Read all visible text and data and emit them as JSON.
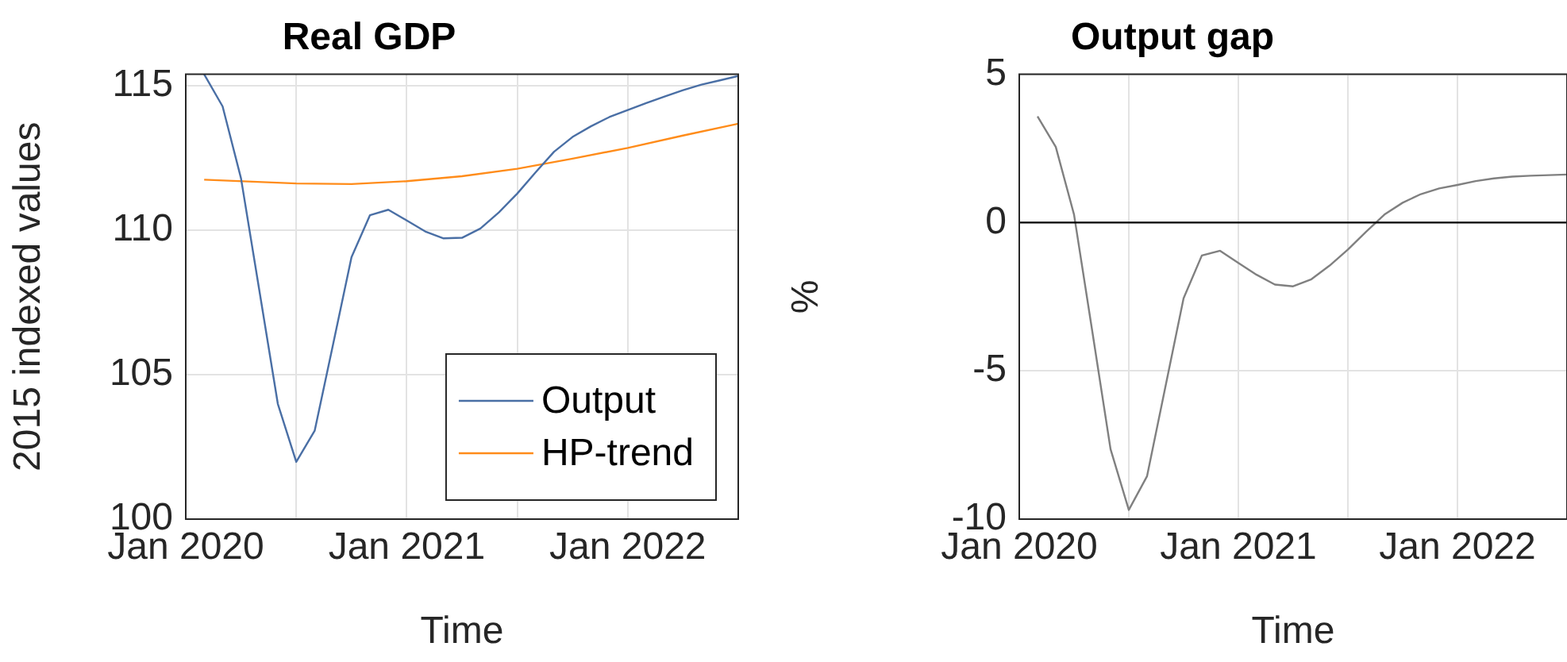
{
  "chart_data": [
    {
      "type": "line",
      "title": "Real GDP",
      "xlabel": "Time",
      "ylabel": "2015 indexed values",
      "x": [
        "2020-02",
        "2020-03",
        "2020-04",
        "2020-05",
        "2020-06",
        "2020-07",
        "2020-08",
        "2020-09",
        "2020-10",
        "2020-11",
        "2020-12",
        "2021-01",
        "2021-02",
        "2021-03",
        "2021-04",
        "2021-05",
        "2021-06",
        "2021-07",
        "2021-08",
        "2021-09",
        "2021-10",
        "2021-11",
        "2021-12",
        "2022-01",
        "2022-02",
        "2022-03",
        "2022-04",
        "2022-05",
        "2022-06",
        "2022-07"
      ],
      "series": [
        {
          "name": "Output",
          "color": "#4a6fa5",
          "values": [
            115.4,
            114.29,
            111.8,
            107.9,
            103.99,
            101.98,
            103.06,
            106.05,
            109.07,
            110.52,
            110.71,
            110.34,
            109.96,
            109.72,
            109.74,
            110.06,
            110.62,
            111.27,
            112.01,
            112.72,
            113.23,
            113.6,
            113.92,
            114.16,
            114.4,
            114.63,
            114.85,
            115.04,
            115.19,
            115.34
          ]
        },
        {
          "name": "HP-trend",
          "color": "#ff8c1a",
          "x": [
            "2020-02",
            "2020-07",
            "2020-10",
            "2021-01",
            "2021-04",
            "2021-07",
            "2021-10",
            "2022-01",
            "2022-04",
            "2022-07"
          ],
          "values": [
            111.75,
            111.62,
            111.6,
            111.7,
            111.87,
            112.13,
            112.48,
            112.85,
            113.28,
            113.69
          ]
        }
      ],
      "xlim": [
        "2020-01",
        "2022-07"
      ],
      "xticks": [
        {
          "value": "2020-01",
          "label": "Jan 2020"
        },
        {
          "value": "2020-07",
          "label": null
        },
        {
          "value": "2021-01",
          "label": "Jan 2021"
        },
        {
          "value": "2021-07",
          "label": null
        },
        {
          "value": "2022-01",
          "label": "Jan 2022"
        }
      ],
      "ylim": [
        100,
        115.4
      ],
      "yticks": [
        100,
        105,
        110,
        115
      ],
      "grid": true,
      "legend": "bottom right",
      "marker": "none",
      "line_style": "solid"
    },
    {
      "type": "line",
      "title": "Output gap",
      "xlabel": "Time",
      "ylabel": "%",
      "x": [
        "2020-02",
        "2020-03",
        "2020-04",
        "2020-05",
        "2020-06",
        "2020-07",
        "2020-08",
        "2020-09",
        "2020-10",
        "2020-11",
        "2020-12",
        "2021-01",
        "2021-02",
        "2021-03",
        "2021-04",
        "2021-05",
        "2021-06",
        "2021-07",
        "2021-08",
        "2021-09",
        "2021-10",
        "2021-11",
        "2021-12",
        "2022-01",
        "2022-02",
        "2022-03",
        "2022-04",
        "2022-05",
        "2022-06",
        "2022-07"
      ],
      "series": [
        {
          "color": "#808080",
          "values": [
            3.58,
            2.55,
            0.27,
            -3.67,
            -7.64,
            -9.69,
            -8.55,
            -5.55,
            -2.55,
            -1.11,
            -0.95,
            -1.36,
            -1.76,
            -2.09,
            -2.15,
            -1.91,
            -1.45,
            -0.91,
            -0.31,
            0.27,
            0.67,
            0.96,
            1.15,
            1.27,
            1.4,
            1.49,
            1.55,
            1.58,
            1.6,
            1.62
          ]
        }
      ],
      "xlim": [
        "2020-01",
        "2022-07"
      ],
      "xticks": [
        {
          "value": "2020-01",
          "label": "Jan 2020"
        },
        {
          "value": "2020-07",
          "label": null
        },
        {
          "value": "2021-01",
          "label": "Jan 2021"
        },
        {
          "value": "2021-07",
          "label": null
        },
        {
          "value": "2022-01",
          "label": "Jan 2022"
        }
      ],
      "ylim": [
        -10,
        5
      ],
      "yticks": [
        -10,
        -5,
        0,
        5
      ],
      "grid": true,
      "legend": false,
      "marker": "none",
      "line_style": "solid",
      "ref_lines": [
        {
          "axis": "y",
          "value": 0,
          "color": "#000000"
        }
      ]
    }
  ]
}
